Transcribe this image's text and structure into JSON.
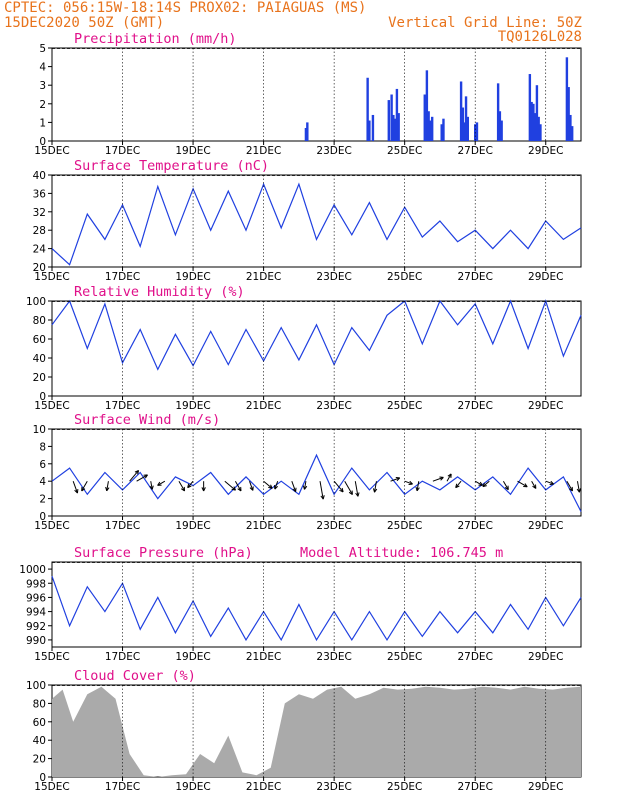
{
  "header": {
    "line1_left": "CPTEC:  056:15W-18:14S  PROX02: PAIAGUAS (MS)",
    "line2_left": "15DEC2020 50Z (GMT)",
    "line2_right": "Vertical Grid Line: 50Z",
    "line3_right": "TQ0126L028"
  },
  "colors": {
    "header": "#e8731c",
    "title": "#e0108a",
    "line": "#2040e0",
    "cloud": "#aaaaaa",
    "arrow": "#000000"
  },
  "x_axis": {
    "labels": [
      "15DEC",
      "17DEC",
      "19DEC",
      "21DEC",
      "23DEC",
      "25DEC",
      "27DEC",
      "29DEC"
    ],
    "label_days": [
      0,
      2,
      4,
      6,
      8,
      10,
      12,
      14
    ],
    "range_days": [
      0,
      15
    ]
  },
  "chart_data": [
    {
      "type": "bar",
      "title": "Precipitation (mm/h)",
      "ylim": [
        0,
        5
      ],
      "yticks": [
        0,
        1,
        2,
        3,
        4,
        5
      ],
      "x": [
        7.2,
        7.24,
        8.95,
        9,
        9.1,
        9.55,
        9.63,
        9.68,
        9.73,
        9.78,
        9.83,
        10.57,
        10.63,
        10.68,
        10.72,
        10.78,
        11.05,
        11.1,
        11.6,
        11.65,
        11.7,
        11.74,
        11.79,
        12.0,
        12.05,
        12.65,
        12.7,
        12.75,
        13.55,
        13.6,
        13.65,
        13.7,
        13.75,
        13.8,
        13.85,
        14.6,
        14.65,
        14.7,
        14.75
      ],
      "values": [
        0.7,
        1.0,
        3.4,
        1.1,
        1.4,
        2.2,
        2.5,
        1.4,
        1.2,
        2.8,
        1.5,
        2.5,
        3.8,
        1.6,
        1.1,
        1.3,
        0.9,
        1.2,
        3.2,
        1.8,
        1.0,
        2.4,
        1.3,
        0.9,
        1.0,
        3.1,
        1.6,
        1.1,
        3.6,
        2.1,
        2.0,
        1.5,
        3.0,
        1.3,
        0.9,
        4.5,
        2.9,
        1.4,
        0.8
      ]
    },
    {
      "type": "line",
      "title": "Surface Temperature (nC)",
      "ylim": [
        20,
        40
      ],
      "yticks": [
        20,
        24,
        28,
        32,
        36,
        40
      ],
      "x": [
        0,
        0.5,
        1,
        1.5,
        2,
        2.5,
        3,
        3.5,
        4,
        4.5,
        5,
        5.5,
        6,
        6.5,
        7,
        7.5,
        8,
        8.5,
        9,
        9.5,
        10,
        10.5,
        11,
        11.5,
        12,
        12.5,
        13,
        13.5,
        14,
        14.5,
        15
      ],
      "y": [
        24,
        20.5,
        31.5,
        26,
        33.5,
        24.5,
        37.5,
        27,
        37,
        28,
        36.5,
        28,
        38,
        28.5,
        38,
        26,
        33.5,
        27,
        34,
        26,
        33,
        26.5,
        30,
        25.5,
        28,
        24,
        28,
        24,
        30,
        26,
        28.5
      ]
    },
    {
      "type": "line",
      "title": "Relative Humidity (%)",
      "ylim": [
        0,
        100
      ],
      "yticks": [
        0,
        20,
        40,
        60,
        80,
        100
      ],
      "x": [
        0,
        0.5,
        1,
        1.5,
        2,
        2.5,
        3,
        3.5,
        4,
        4.5,
        5,
        5.5,
        6,
        6.5,
        7,
        7.5,
        8,
        8.5,
        9,
        9.5,
        10,
        10.5,
        11,
        11.5,
        12,
        12.5,
        13,
        13.5,
        14,
        14.5,
        15
      ],
      "y": [
        75,
        100,
        50,
        97,
        35,
        70,
        28,
        65,
        32,
        68,
        33,
        70,
        37,
        72,
        38,
        75,
        33,
        72,
        48,
        85,
        100,
        55,
        100,
        75,
        97,
        55,
        100,
        50,
        100,
        42,
        85
      ]
    },
    {
      "type": "line",
      "title": "Surface Wind (m/s)",
      "ylim": [
        0,
        10
      ],
      "yticks": [
        0,
        2,
        4,
        6,
        8,
        10
      ],
      "x": [
        0,
        0.5,
        1,
        1.5,
        2,
        2.5,
        3,
        3.5,
        4,
        4.5,
        5,
        5.5,
        6,
        6.5,
        7,
        7.5,
        8,
        8.5,
        9,
        9.5,
        10,
        10.5,
        11,
        11.5,
        12,
        12.5,
        13,
        13.5,
        14,
        14.5,
        15
      ],
      "y": [
        4,
        5.5,
        2.5,
        5,
        3,
        5,
        2,
        4.5,
        3.5,
        5,
        2.5,
        4.5,
        2.5,
        4,
        2.5,
        7,
        2.5,
        5.5,
        3,
        5,
        2.5,
        4,
        3,
        4.5,
        3,
        4.5,
        2.5,
        5.5,
        3,
        4.5,
        0.5
      ]
    },
    {
      "type": "line",
      "title": "Surface Pressure (hPa)",
      "annotation": "Model Altitude: 106.745  m",
      "ylim": [
        989,
        1001
      ],
      "yticks": [
        990,
        992,
        994,
        996,
        998,
        1000
      ],
      "x": [
        0,
        0.5,
        1,
        1.5,
        2,
        2.5,
        3,
        3.5,
        4,
        4.5,
        5,
        5.5,
        6,
        6.5,
        7,
        7.5,
        8,
        8.5,
        9,
        9.5,
        10,
        10.5,
        11,
        11.5,
        12,
        12.5,
        13,
        13.5,
        14,
        14.5,
        15
      ],
      "y": [
        999,
        992,
        997.5,
        994,
        998,
        991.5,
        996,
        991,
        995.5,
        990.5,
        994.5,
        990,
        994,
        990,
        995,
        990,
        994,
        990,
        994,
        990,
        994,
        990.5,
        994,
        991,
        994,
        991,
        995,
        991.5,
        996,
        992,
        996
      ]
    },
    {
      "type": "area",
      "title": "Cloud Cover (%)",
      "ylim": [
        0,
        100
      ],
      "yticks": [
        0,
        20,
        40,
        60,
        80,
        100
      ],
      "x": [
        0,
        0.3,
        0.6,
        1,
        1.4,
        1.8,
        2.2,
        2.6,
        3,
        3.4,
        3.8,
        4.2,
        4.6,
        5,
        5.4,
        5.8,
        6.2,
        6.6,
        7,
        7.4,
        7.8,
        8.2,
        8.6,
        9,
        9.4,
        9.8,
        10.2,
        10.6,
        11,
        11.4,
        11.8,
        12.2,
        12.6,
        13,
        13.4,
        13.8,
        14.2,
        14.6,
        15
      ],
      "y": [
        85,
        95,
        60,
        90,
        98,
        85,
        25,
        2,
        0,
        2,
        3,
        25,
        15,
        45,
        5,
        2,
        10,
        80,
        90,
        85,
        95,
        98,
        85,
        90,
        97,
        95,
        96,
        98,
        97,
        95,
        96,
        98,
        97,
        95,
        98,
        96,
        95,
        97,
        98
      ]
    }
  ],
  "wind_arrows": [
    [
      0.6,
      -70,
      0.9
    ],
    [
      1.0,
      -120,
      0.8
    ],
    [
      1.6,
      -100,
      0.7
    ],
    [
      2.2,
      50,
      1.0
    ],
    [
      2.4,
      30,
      0.9
    ],
    [
      2.8,
      -80,
      0.6
    ],
    [
      3.2,
      -150,
      0.6
    ],
    [
      3.6,
      -60,
      0.8
    ],
    [
      4.0,
      -130,
      0.6
    ],
    [
      4.3,
      -90,
      0.7
    ],
    [
      4.9,
      -40,
      1.0
    ],
    [
      5.2,
      -60,
      0.8
    ],
    [
      5.6,
      -70,
      0.7
    ],
    [
      6.0,
      -40,
      0.8
    ],
    [
      6.4,
      -110,
      0.6
    ],
    [
      6.8,
      -70,
      0.8
    ],
    [
      7.2,
      -100,
      0.6
    ],
    [
      7.6,
      -80,
      1.3
    ],
    [
      8.0,
      -50,
      1.0
    ],
    [
      8.3,
      -60,
      1.1
    ],
    [
      8.6,
      -80,
      1.1
    ],
    [
      9.2,
      -100,
      0.8
    ],
    [
      9.6,
      20,
      0.7
    ],
    [
      10.0,
      -20,
      0.6
    ],
    [
      10.4,
      -100,
      0.7
    ],
    [
      10.8,
      20,
      0.8
    ],
    [
      11.2,
      60,
      0.6
    ],
    [
      11.6,
      -130,
      0.6
    ],
    [
      12.0,
      -30,
      0.6
    ],
    [
      12.4,
      -140,
      0.6
    ],
    [
      12.8,
      -60,
      0.7
    ],
    [
      13.2,
      -30,
      0.8
    ],
    [
      13.6,
      -60,
      0.6
    ],
    [
      14.0,
      -20,
      0.6
    ],
    [
      14.6,
      -60,
      0.8
    ],
    [
      14.9,
      -80,
      0.8
    ]
  ]
}
